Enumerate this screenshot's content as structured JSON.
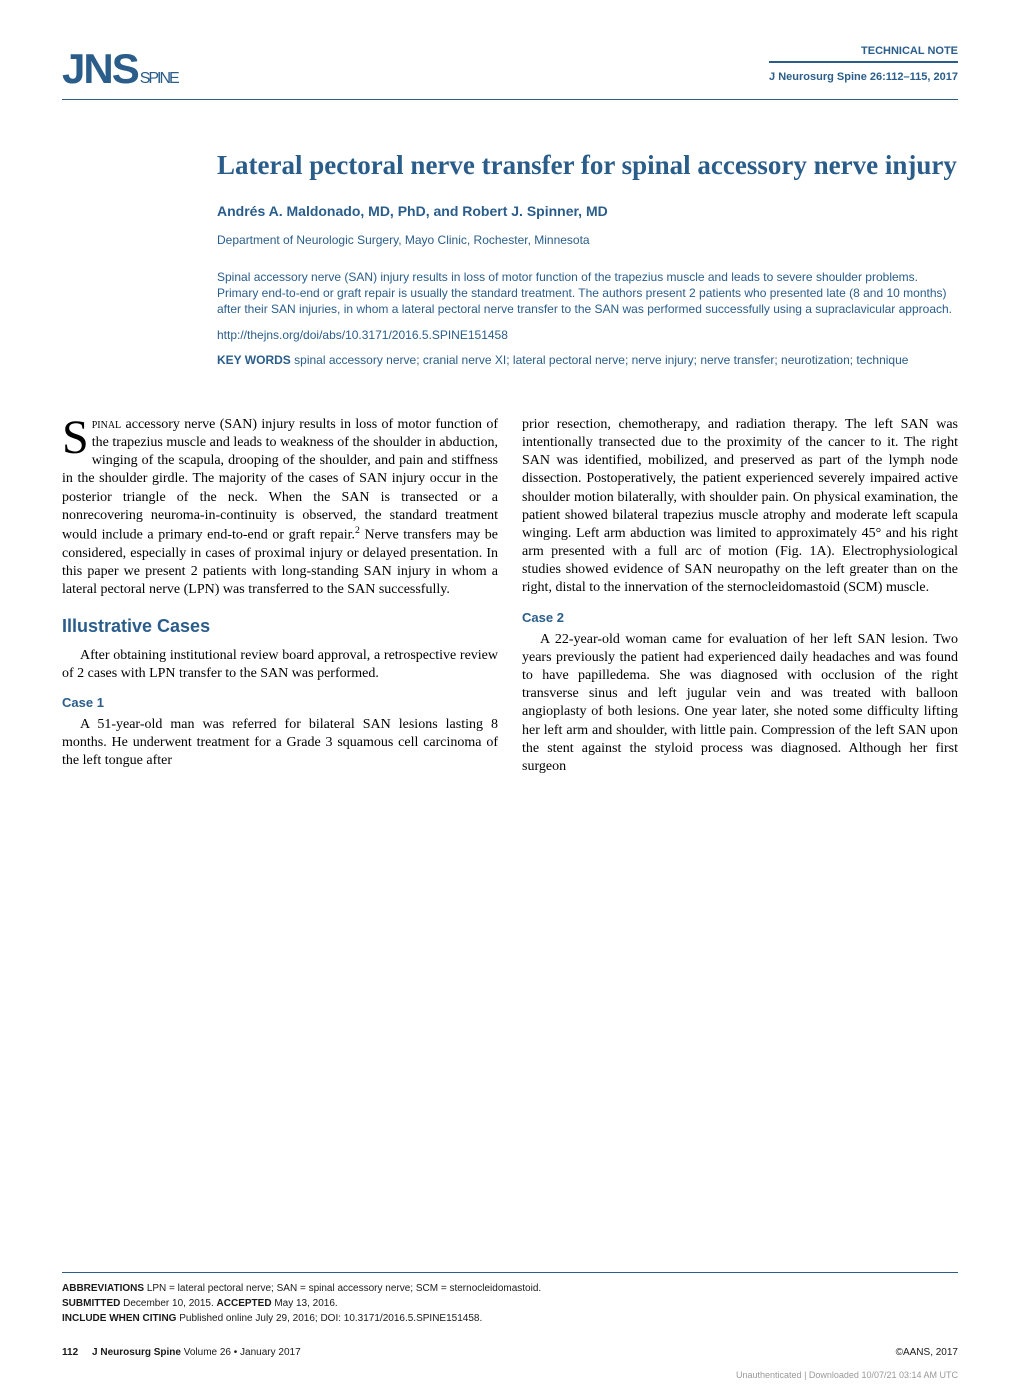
{
  "header": {
    "logo_main": "JNS",
    "logo_sub": "SPINE",
    "note_type": "TECHNICAL NOTE",
    "citation": "J Neurosurg Spine 26:112–115, 2017"
  },
  "article": {
    "title": "Lateral pectoral nerve transfer for spinal accessory nerve injury",
    "authors": "Andrés A. Maldonado, MD, PhD, and Robert J. Spinner, MD",
    "affiliation": "Department of Neurologic Surgery, Mayo Clinic, Rochester, Minnesota",
    "abstract": "Spinal accessory nerve (SAN) injury results in loss of motor function of the trapezius muscle and leads to severe shoulder problems. Primary end-to-end or graft repair is usually the standard treatment. The authors present 2 patients who presented late (8 and 10 months) after their SAN injuries, in whom a lateral pectoral nerve transfer to the SAN was performed successfully using a supraclavicular approach.",
    "doi": "http://thejns.org/doi/abs/10.3171/2016.5.SPINE151458",
    "keywords_label": "KEY WORDS",
    "keywords": "spinal accessory nerve; cranial nerve XI; lateral pectoral nerve; nerve injury; nerve transfer; neurotization; technique"
  },
  "body": {
    "intro_dropcap": "S",
    "intro_smallcaps": "pinal",
    "intro_text": " accessory nerve (SAN) injury results in loss of motor function of the trapezius muscle and leads to weakness of the shoulder in abduction, winging of the scapula, drooping of the shoulder, and pain and stiffness in the shoulder girdle. The majority of the cases of SAN injury occur in the posterior triangle of the neck. When the SAN is transected or a nonrecovering neuroma-in-continuity is observed, the standard treatment would include a primary end-to-end or graft repair.",
    "intro_text2": " Nerve transfers may be considered, especially in cases of proximal injury or delayed presentation. In this paper we present 2 patients with long-standing SAN injury in whom a lateral pectoral nerve (LPN) was transferred to the SAN successfully.",
    "section_illustrative": "Illustrative Cases",
    "illustrative_intro": "After obtaining institutional review board approval, a retrospective review of 2 cases with LPN transfer to the SAN was performed.",
    "case1_heading": "Case 1",
    "case1_text": "A 51-year-old man was referred for bilateral SAN lesions lasting 8 months. He underwent treatment for a Grade 3 squamous cell carcinoma of the left tongue after",
    "col2_p1": "prior resection, chemotherapy, and radiation therapy. The left SAN was intentionally transected due to the proximity of the cancer to it. The right SAN was identified, mobilized, and preserved as part of the lymph node dissection. Postoperatively, the patient experienced severely impaired active shoulder motion bilaterally, with shoulder pain. On physical examination, the patient showed bilateral trapezius muscle atrophy and moderate left scapula winging. Left arm abduction was limited to approximately 45° and his right arm presented with a full arc of motion (Fig. 1A). Electrophysiological studies showed evidence of SAN neuropathy on the left greater than on the right, distal to the innervation of the sternocleidomastoid (SCM) muscle.",
    "case2_heading": "Case 2",
    "case2_text": "A 22-year-old woman came for evaluation of her left SAN lesion. Two years previously the patient had experienced daily headaches and was found to have papilledema. She was diagnosed with occlusion of the right transverse sinus and left jugular vein and was treated with balloon angioplasty of both lesions. One year later, she noted some difficulty lifting her left arm and shoulder, with little pain. Compression of the left SAN upon the stent against the styloid process was diagnosed. Although her first surgeon"
  },
  "footer": {
    "abbrev_label": "ABBREVIATIONS",
    "abbrev_text": "LPN = lateral pectoral nerve; SAN = spinal accessory nerve; SCM = sternocleidomastoid.",
    "submitted_label": "SUBMITTED",
    "submitted_text": "December 10, 2015.",
    "accepted_label": "ACCEPTED",
    "accepted_text": "May 13, 2016.",
    "include_label": "INCLUDE WHEN CITING",
    "include_text": "Published online July 29, 2016; DOI: 10.3171/2016.5.SPINE151458.",
    "page_number": "112",
    "journal_name": "J Neurosurg Spine",
    "volume_info": "Volume 26 • January 2017",
    "copyright": "©AANS, 2017",
    "watermark": "Unauthenticated | Downloaded 10/07/21 03:14 AM UTC"
  }
}
